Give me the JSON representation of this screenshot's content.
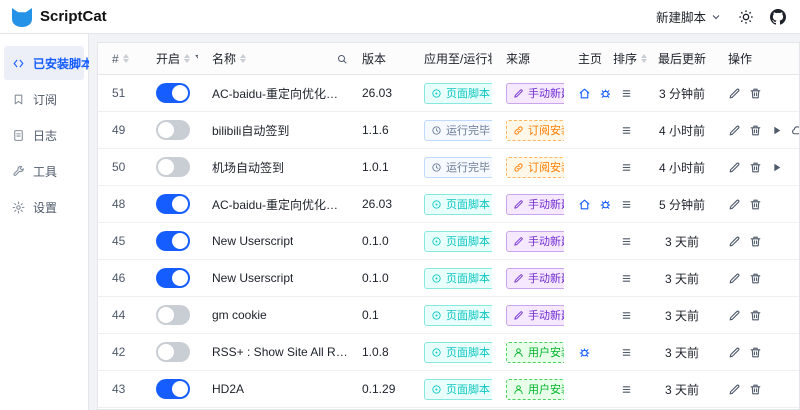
{
  "header": {
    "app_title": "ScriptCat",
    "new_script_label": "新建脚本"
  },
  "sidebar": {
    "items": [
      {
        "key": "installed",
        "label": "已安装脚本",
        "icon": "code-icon",
        "active": true
      },
      {
        "key": "subscribe",
        "label": "订阅",
        "icon": "bookmark-icon",
        "active": false
      },
      {
        "key": "logs",
        "label": "日志",
        "icon": "log-icon",
        "active": false
      },
      {
        "key": "tools",
        "label": "工具",
        "icon": "tools-icon",
        "active": false
      },
      {
        "key": "settings",
        "label": "设置",
        "icon": "settings-icon",
        "active": false
      }
    ]
  },
  "table": {
    "columns": [
      {
        "key": "num",
        "label": "#",
        "sort": true
      },
      {
        "key": "enabled",
        "label": "开启",
        "sort": true,
        "filter": true
      },
      {
        "key": "name",
        "label": "名称",
        "sort": true,
        "search": true
      },
      {
        "key": "version",
        "label": "版本"
      },
      {
        "key": "status",
        "label": "应用至/运行状态"
      },
      {
        "key": "source",
        "label": "来源"
      },
      {
        "key": "homepage",
        "label": "主页"
      },
      {
        "key": "sort",
        "label": "排序",
        "sort": true
      },
      {
        "key": "updated",
        "label": "最后更新"
      },
      {
        "key": "actions",
        "label": "操作"
      }
    ],
    "rows": [
      {
        "num": "51",
        "enabled": true,
        "name": "AC-baidu-重定向优化百度搜狗谷歌...",
        "version": "26.03",
        "status": {
          "label": "页面脚本",
          "type": "page",
          "icon": "page-status-icon"
        },
        "source": {
          "label": "手动新建",
          "type": "manual",
          "icon": "manual-source-icon"
        },
        "homepage": [
          "home",
          "bug"
        ],
        "updated": "3 分钟前",
        "actions": [
          "edit",
          "delete"
        ]
      },
      {
        "num": "49",
        "enabled": false,
        "name": "bilibili自动签到",
        "version": "1.1.6",
        "status": {
          "label": "运行完毕",
          "type": "done",
          "icon": "done-status-icon"
        },
        "source": {
          "label": "订阅安装",
          "type": "subscribe",
          "icon": "subscribe-source-icon"
        },
        "homepage": [],
        "updated": "4 小时前",
        "actions": [
          "edit",
          "delete",
          "play",
          "cloud-upload"
        ]
      },
      {
        "num": "50",
        "enabled": false,
        "name": "机场自动签到",
        "version": "1.0.1",
        "status": {
          "label": "运行完毕",
          "type": "done",
          "icon": "done-status-icon"
        },
        "source": {
          "label": "订阅安装",
          "type": "subscribe",
          "icon": "subscribe-source-icon"
        },
        "homepage": [],
        "updated": "4 小时前",
        "actions": [
          "edit",
          "delete",
          "play"
        ]
      },
      {
        "num": "48",
        "enabled": true,
        "name": "AC-baidu-重定向优化百度搜狗谷歌...",
        "version": "26.03",
        "status": {
          "label": "页面脚本",
          "type": "page",
          "icon": "page-status-icon"
        },
        "source": {
          "label": "手动新建",
          "type": "manual",
          "icon": "manual-source-icon"
        },
        "homepage": [
          "home",
          "bug"
        ],
        "updated": "5 分钟前",
        "actions": [
          "edit",
          "delete"
        ]
      },
      {
        "num": "45",
        "enabled": true,
        "name": "New Userscript",
        "version": "0.1.0",
        "status": {
          "label": "页面脚本",
          "type": "page",
          "icon": "page-status-icon"
        },
        "source": {
          "label": "手动新建",
          "type": "manual",
          "icon": "manual-source-icon"
        },
        "homepage": [],
        "updated": "3 天前",
        "actions": [
          "edit",
          "delete"
        ]
      },
      {
        "num": "46",
        "enabled": true,
        "name": "New Userscript",
        "version": "0.1.0",
        "status": {
          "label": "页面脚本",
          "type": "page",
          "icon": "page-status-icon"
        },
        "source": {
          "label": "手动新建",
          "type": "manual",
          "icon": "manual-source-icon"
        },
        "homepage": [],
        "updated": "3 天前",
        "actions": [
          "edit",
          "delete"
        ]
      },
      {
        "num": "44",
        "enabled": false,
        "name": "gm cookie",
        "version": "0.1",
        "status": {
          "label": "页面脚本",
          "type": "page",
          "icon": "page-status-icon"
        },
        "source": {
          "label": "手动新建",
          "type": "manual",
          "icon": "manual-source-icon"
        },
        "homepage": [],
        "updated": "3 天前",
        "actions": [
          "edit",
          "delete"
        ]
      },
      {
        "num": "42",
        "enabled": false,
        "name": "RSS+ : Show Site All RSS",
        "version": "1.0.8",
        "status": {
          "label": "页面脚本",
          "type": "page",
          "icon": "page-status-icon"
        },
        "source": {
          "label": "用户安装",
          "type": "user",
          "icon": "user-source-icon"
        },
        "homepage": [
          "bug"
        ],
        "updated": "3 天前",
        "actions": [
          "edit",
          "delete"
        ]
      },
      {
        "num": "43",
        "enabled": true,
        "name": "HD2A",
        "version": "0.1.29",
        "status": {
          "label": "页面脚本",
          "type": "page",
          "icon": "page-status-icon"
        },
        "source": {
          "label": "用户安装",
          "type": "user",
          "icon": "user-source-icon"
        },
        "homepage": [],
        "updated": "3 天前",
        "actions": [
          "edit",
          "delete"
        ]
      }
    ]
  },
  "colors": {
    "accent_blue": "#165dff",
    "logo_blue": "#2492e6",
    "toggle_off": "#c9cdd4",
    "badge_page": "#0fc6c2",
    "badge_done": "#6a7b94",
    "badge_manual": "#722ed1",
    "badge_subscribe": "#ff7d00",
    "badge_user": "#00b42a",
    "border": "#e5e6eb"
  }
}
